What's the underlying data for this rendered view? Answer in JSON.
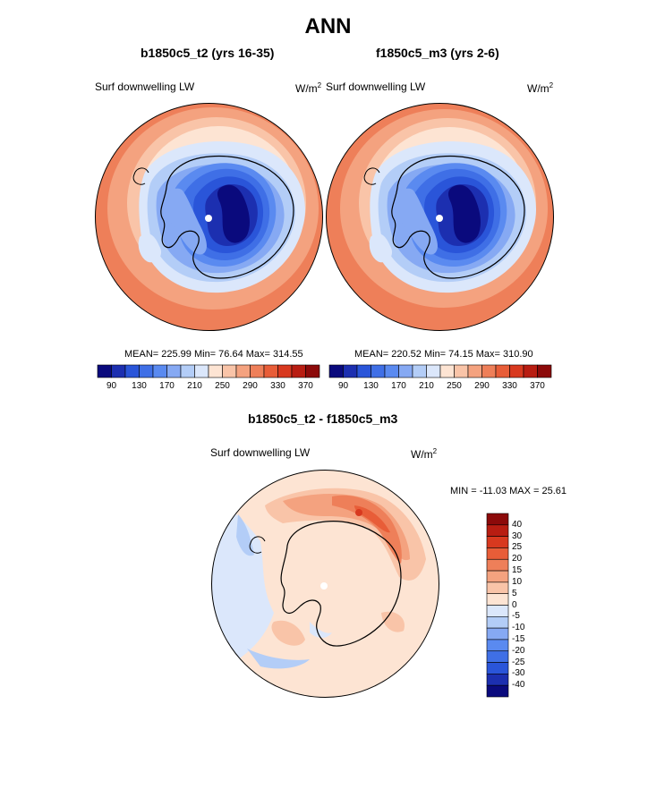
{
  "header": {
    "title": "ANN"
  },
  "panels": [
    {
      "title": "b1850c5_t2 (yrs 16-35)",
      "variable": "Surf downwelling LW",
      "units_base": "W/m",
      "units_exp": "2",
      "stats": "MEAN= 225.99  Min=  76.64  Max= 314.55"
    },
    {
      "title": "f1850c5_m3 (yrs 2-6)",
      "variable": "Surf downwelling LW",
      "units_base": "W/m",
      "units_exp": "2",
      "stats": "MEAN= 220.52  Min=  74.15  Max= 310.90"
    },
    {
      "title": "b1850c5_t2 - f1850c5_m3",
      "variable": "Surf downwelling LW",
      "units_base": "W/m",
      "units_exp": "2",
      "stats": "MIN = -11.03 MAX =  25.61"
    }
  ],
  "colorbars": {
    "abs_colors": [
      "#0a0a7d",
      "#1c2fb0",
      "#2a55d9",
      "#3f6fe6",
      "#5a8af0",
      "#86a9f3",
      "#b3cdf7",
      "#dbe7fb",
      "#fde4d3",
      "#f9c4a8",
      "#f4a27f",
      "#ee7f59",
      "#e85d38",
      "#d8391f",
      "#b81d12",
      "#8c0a0a"
    ],
    "abs_ticks": [
      "90",
      "130",
      "170",
      "210",
      "250",
      "290",
      "330",
      "370"
    ],
    "diff_colors": [
      "#0a0a7d",
      "#1c2fb0",
      "#2a55d9",
      "#3f6fe6",
      "#5a8af0",
      "#86a9f3",
      "#b3cdf7",
      "#dbe7fb",
      "#fde4d3",
      "#f9c4a8",
      "#f4a27f",
      "#ee7f59",
      "#e85d38",
      "#d8391f",
      "#b81d12",
      "#8c0a0a"
    ],
    "diff_ticks": [
      "40",
      "30",
      "25",
      "20",
      "15",
      "10",
      "5",
      "0",
      "-5",
      "-10",
      "-15",
      "-20",
      "-25",
      "-30",
      "-40"
    ]
  },
  "chart_data": [
    {
      "type": "heatmap",
      "title": "b1850c5_t2 (yrs 16-35)",
      "variable": "Surf downwelling LW",
      "units": "W/m2",
      "mean": 225.99,
      "min": 76.64,
      "max": 314.55,
      "levels": [
        90,
        110,
        130,
        150,
        170,
        190,
        210,
        230,
        250,
        270,
        290,
        310,
        330,
        350,
        370
      ],
      "approx_field": {
        "interior_antarctic": 90,
        "coastal_antarctic": 170,
        "sea_ice_ring": 230,
        "midlatitude_ocean": 300
      }
    },
    {
      "type": "heatmap",
      "title": "f1850c5_m3 (yrs 2-6)",
      "variable": "Surf downwelling LW",
      "units": "W/m2",
      "mean": 220.52,
      "min": 74.15,
      "max": 310.9,
      "levels": [
        90,
        110,
        130,
        150,
        170,
        190,
        210,
        230,
        250,
        270,
        290,
        310,
        330,
        350,
        370
      ],
      "approx_field": {
        "interior_antarctic": 88,
        "coastal_antarctic": 165,
        "sea_ice_ring": 225,
        "midlatitude_ocean": 295
      }
    },
    {
      "type": "heatmap",
      "title": "b1850c5_t2 - f1850c5_m3",
      "variable": "Surf downwelling LW",
      "units": "W/m2",
      "min": -11.03,
      "max": 25.61,
      "levels": [
        -40,
        -30,
        -25,
        -20,
        -15,
        -10,
        -5,
        0,
        5,
        10,
        15,
        20,
        25,
        30,
        40
      ],
      "approx_field": {
        "antarctic_continent": 3,
        "weddell_ross_seas": 15,
        "atlantic_sector": -5
      }
    }
  ]
}
